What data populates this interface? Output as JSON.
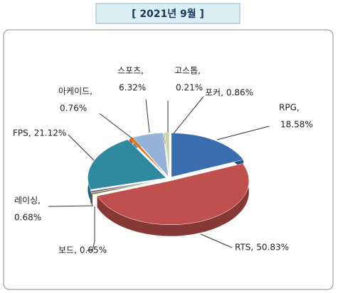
{
  "chart_data": {
    "type": "pie3d",
    "title": "[ 2021년 9월 ]",
    "categories": [
      "RPG,",
      "RTS,",
      "보드,",
      "레이싱,",
      "FPS,",
      "아케이드,",
      "스포츠,",
      "고스톱,",
      "포커,"
    ],
    "values": [
      18.58,
      50.83,
      0.65,
      0.68,
      21.12,
      0.76,
      6.32,
      0.21,
      0.86
    ],
    "value_labels": [
      "18.58%",
      "50.83%",
      "0.65%",
      "0.68%",
      "21.12%",
      "0.76%",
      "6.32%",
      "0.21%",
      "0.86%"
    ],
    "colors": [
      "#3a6cb0",
      "#c0504d",
      "#6e8c35",
      "#7c5b9e",
      "#31899f",
      "#e46c0a",
      "#95b3d7",
      "#d99694",
      "#c3d69b"
    ]
  }
}
